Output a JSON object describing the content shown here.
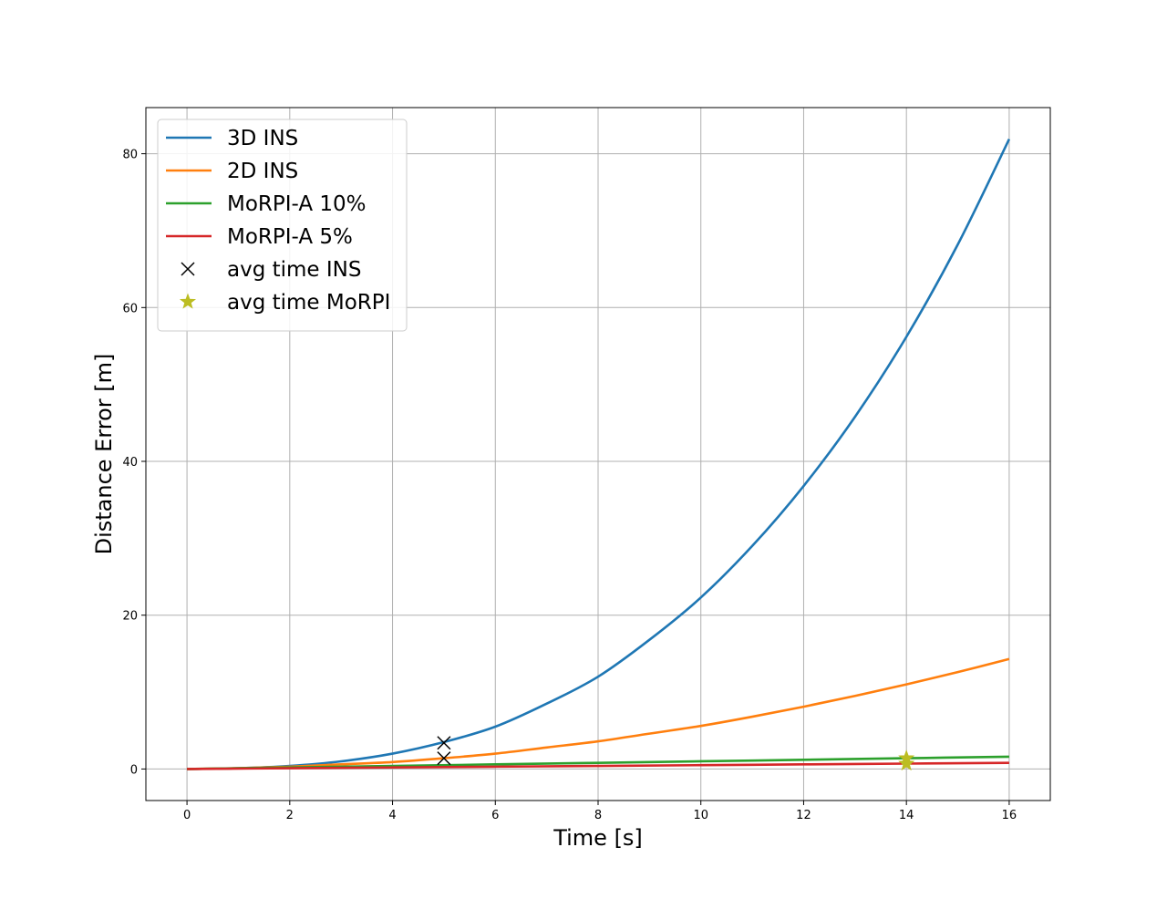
{
  "chart_data": {
    "type": "line",
    "title": "",
    "xlabel": "Time [s]",
    "ylabel": "Distance Error [m]",
    "xlim": [
      -0.8,
      16.8
    ],
    "ylim": [
      -4.1,
      86.0
    ],
    "xticks": [
      0,
      2,
      4,
      6,
      8,
      10,
      12,
      14,
      16
    ],
    "yticks": [
      0,
      20,
      40,
      60,
      80
    ],
    "grid": true,
    "legend_position": "upper-left",
    "series": [
      {
        "name": "3D INS",
        "color": "#1f77b4",
        "x": [
          0,
          1,
          2,
          3,
          4,
          5,
          6,
          7,
          8,
          9,
          10,
          11,
          12,
          13,
          14,
          15,
          16
        ],
        "values": [
          0,
          0.1,
          0.4,
          1.0,
          2.0,
          3.5,
          5.5,
          8.5,
          12.0,
          16.8,
          22.3,
          29.0,
          36.8,
          45.8,
          56.2,
          68.2,
          81.9
        ]
      },
      {
        "name": "2D INS",
        "color": "#ff7f0e",
        "x": [
          0,
          1,
          2,
          3,
          4,
          5,
          6,
          7,
          8,
          9,
          10,
          11,
          12,
          13,
          14,
          15,
          16
        ],
        "values": [
          0,
          0.1,
          0.3,
          0.6,
          0.9,
          1.4,
          2.0,
          2.8,
          3.6,
          4.6,
          5.6,
          6.8,
          8.1,
          9.5,
          11.0,
          12.6,
          14.3
        ]
      },
      {
        "name": "MoRPI-A 10%",
        "color": "#2ca02c",
        "x": [
          0,
          2,
          4,
          6,
          8,
          10,
          12,
          14,
          16
        ],
        "values": [
          0,
          0.2,
          0.4,
          0.6,
          0.8,
          1.0,
          1.2,
          1.4,
          1.6
        ]
      },
      {
        "name": "MoRPI-A 5%",
        "color": "#d62728",
        "x": [
          0,
          2,
          4,
          6,
          8,
          10,
          12,
          14,
          16
        ],
        "values": [
          0,
          0.1,
          0.2,
          0.3,
          0.4,
          0.5,
          0.6,
          0.7,
          0.8
        ]
      }
    ],
    "markers": [
      {
        "name": "avg time INS",
        "symbol": "x",
        "color": "#000000",
        "points": [
          [
            5,
            3.4
          ],
          [
            5,
            1.4
          ]
        ]
      },
      {
        "name": "avg time MoRPI",
        "symbol": "star",
        "color": "#bcbd22",
        "points": [
          [
            14,
            1.4
          ],
          [
            14,
            0.7
          ]
        ]
      }
    ]
  }
}
